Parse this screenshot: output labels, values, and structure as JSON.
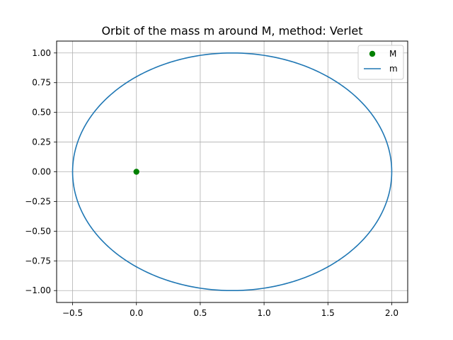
{
  "chart_data": {
    "type": "line",
    "title": "Orbit of the mass m around M, method: Verlet",
    "xlabel": "",
    "ylabel": "",
    "xlim": [
      -0.625,
      2.125
    ],
    "ylim": [
      -1.1,
      1.1
    ],
    "xticks": [
      -0.5,
      0.0,
      0.5,
      1.0,
      1.5,
      2.0
    ],
    "xtick_labels": [
      "−0.5",
      "0.0",
      "0.5",
      "1.0",
      "1.5",
      "2.0"
    ],
    "yticks": [
      -1.0,
      -0.75,
      -0.5,
      -0.25,
      0.0,
      0.25,
      0.5,
      0.75,
      1.0
    ],
    "ytick_labels": [
      "−1.00",
      "−0.75",
      "−0.50",
      "−0.25",
      "0.00",
      "0.25",
      "0.50",
      "0.75",
      "1.00"
    ],
    "grid": true,
    "legend_position": "top-right",
    "series": [
      {
        "name": "M",
        "kind": "scatter",
        "color": "#008000",
        "points": [
          [
            0.0,
            0.0
          ]
        ]
      },
      {
        "name": "m",
        "kind": "line",
        "color": "#1f77b4",
        "shape": "ellipse",
        "center": [
          0.75,
          0.0
        ],
        "semi_axes": [
          1.25,
          1.0
        ]
      }
    ]
  }
}
